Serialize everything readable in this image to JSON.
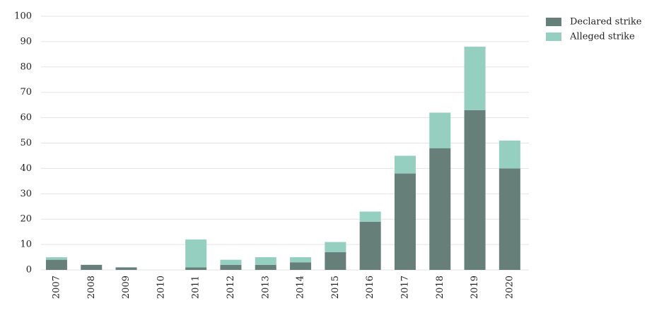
{
  "chart_data": {
    "type": "stacked_bar",
    "categories": [
      "2007",
      "2008",
      "2009",
      "2010",
      "2011",
      "2012",
      "2013",
      "2014",
      "2015",
      "2016",
      "2017",
      "2018",
      "2019",
      "2020"
    ],
    "series": [
      {
        "name": "Declared strike",
        "color": "#667f79",
        "values": [
          4,
          2,
          1,
          0,
          1,
          2,
          2,
          3,
          7,
          19,
          38,
          48,
          63,
          40
        ]
      },
      {
        "name": "Alleged strike",
        "color": "#94cfc0",
        "values": [
          1,
          0,
          0,
          0,
          11,
          2,
          3,
          2,
          4,
          4,
          7,
          14,
          25,
          11
        ]
      }
    ],
    "ylim": [
      0,
      100
    ],
    "yticks": [
      0,
      10,
      20,
      30,
      40,
      50,
      60,
      70,
      80,
      90,
      100
    ],
    "grid": true,
    "legend": "top-right"
  }
}
